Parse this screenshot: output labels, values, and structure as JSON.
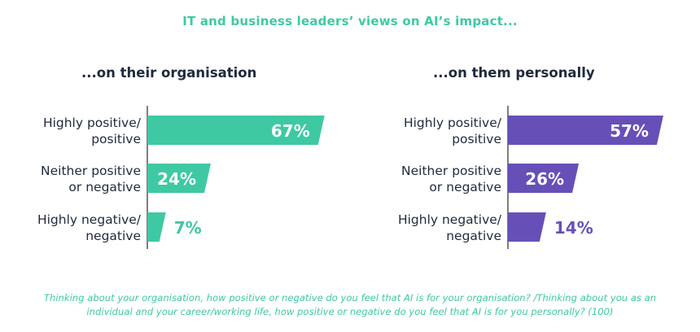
{
  "title": "IT and business leaders’ views on AI’s impact...",
  "footnote": "Thinking about your organisation, how positive or negative do you feel that AI is for your organisation? /Thinking about you as an individual and your career/working life, how positive or negative do you feel that AI is for you personally? (100)",
  "colors": {
    "left": "#3ec9a3",
    "right": "#6650b8",
    "title": "#3ec9a3",
    "text": "#1f2a3d"
  },
  "chart_data": [
    {
      "type": "bar",
      "orientation": "horizontal",
      "title": "...on their organisation",
      "categories": [
        [
          "Highly positive/",
          "positive"
        ],
        [
          "Neither positive",
          "or negative"
        ],
        [
          "Highly negative/",
          "negative"
        ]
      ],
      "values": [
        67,
        24,
        7
      ],
      "value_labels": [
        "67%",
        "24%",
        "7%"
      ],
      "unit": "%",
      "xlim": [
        0,
        100
      ],
      "grid": false
    },
    {
      "type": "bar",
      "orientation": "horizontal",
      "title": "...on them personally",
      "categories": [
        [
          "Highly positive/",
          "positive"
        ],
        [
          "Neither positive",
          "or negative"
        ],
        [
          "Highly negative/",
          "negative"
        ]
      ],
      "values": [
        57,
        26,
        14
      ],
      "value_labels": [
        "57%",
        "26%",
        "14%"
      ],
      "unit": "%",
      "xlim": [
        0,
        100
      ],
      "grid": false
    }
  ]
}
